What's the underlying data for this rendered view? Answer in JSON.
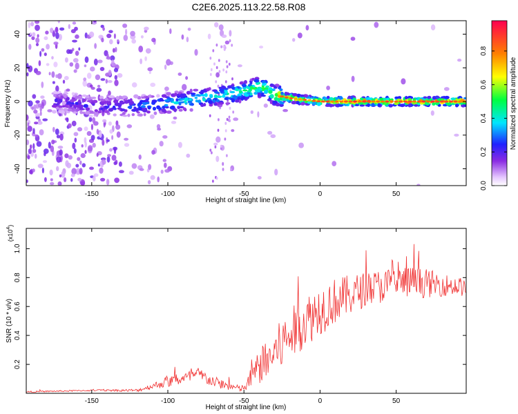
{
  "title": "C2E6.2025.113.22.58.R08",
  "chart_data": [
    {
      "type": "heatmap",
      "xlabel": "Height of straight line (km)",
      "ylabel": "Frequency (Hz)",
      "xlim": [
        -193,
        96
      ],
      "ylim": [
        -50,
        48
      ],
      "xticks": [
        -150,
        -100,
        -50,
        0,
        50
      ],
      "yticks": [
        -40,
        -20,
        0,
        20,
        40
      ],
      "colorbar": {
        "label": "Normalized spectral amplitude",
        "range": [
          0,
          1
        ],
        "ticks": [
          "0.0",
          "0.2",
          "0.4",
          "0.6",
          "0.8"
        ]
      },
      "ridge": {
        "x": [
          -193,
          -170,
          -150,
          -130,
          -110,
          -90,
          -70,
          -55,
          -45,
          -40,
          -35,
          -30,
          -25,
          -20,
          -10,
          0,
          20,
          40,
          60,
          80,
          96
        ],
        "freq": [
          -2,
          0,
          -3,
          -3,
          -2,
          0,
          3,
          5,
          7,
          9,
          7,
          4,
          3,
          2,
          1,
          0,
          0,
          0,
          0,
          0,
          0
        ],
        "amp": [
          0.2,
          0.25,
          0.25,
          0.3,
          0.4,
          0.45,
          0.5,
          0.55,
          0.6,
          0.65,
          0.6,
          0.7,
          0.85,
          0.9,
          0.85,
          0.9,
          0.95,
          0.95,
          0.95,
          0.95,
          0.9
        ]
      }
    },
    {
      "type": "line",
      "xlabel": "Height of straight line (km)",
      "ylabel": "SNR (10 * v/v)",
      "yscale_label": "(x10",
      "yscale_exp": "4",
      "yscale_close": ")",
      "xlim": [
        -193,
        96
      ],
      "ylim": [
        0.0,
        1.14
      ],
      "xticks": [
        -150,
        -100,
        -50,
        0,
        50
      ],
      "yticks": [
        0.2,
        0.4,
        0.6,
        0.8,
        1.0
      ],
      "series": [
        {
          "color": "#f03030",
          "x": [
            -193,
            -150,
            -120,
            -110,
            -100,
            -90,
            -80,
            -70,
            -60,
            -52,
            -48,
            -45,
            -40,
            -35,
            -30,
            -25,
            -20,
            -10,
            0,
            10,
            20,
            30,
            40,
            50,
            60,
            70,
            80,
            90,
            96
          ],
          "y": [
            0.01,
            0.02,
            0.02,
            0.05,
            0.08,
            0.1,
            0.13,
            0.08,
            0.05,
            0.03,
            0.05,
            0.12,
            0.18,
            0.22,
            0.28,
            0.34,
            0.4,
            0.5,
            0.58,
            0.64,
            0.68,
            0.72,
            0.74,
            0.76,
            0.77,
            0.76,
            0.75,
            0.74,
            0.73
          ],
          "noise": [
            0.005,
            0.005,
            0.01,
            0.02,
            0.04,
            0.04,
            0.05,
            0.04,
            0.03,
            0.02,
            0.04,
            0.08,
            0.12,
            0.14,
            0.16,
            0.18,
            0.18,
            0.18,
            0.18,
            0.16,
            0.14,
            0.12,
            0.12,
            0.12,
            0.11,
            0.1,
            0.08,
            0.07,
            0.06
          ]
        }
      ]
    }
  ]
}
